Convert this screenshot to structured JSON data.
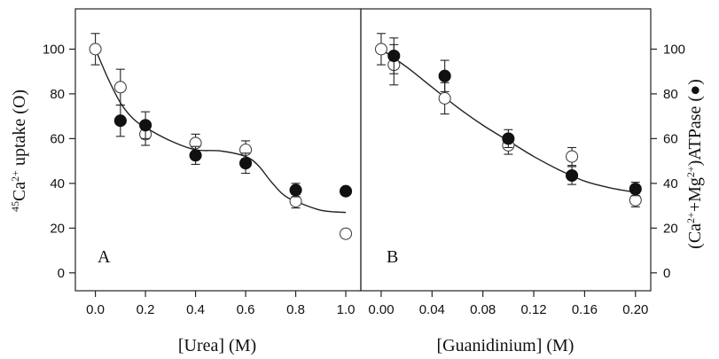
{
  "chart_data": [
    {
      "type": "scatter",
      "panel_label": "A",
      "xlabel": "[Urea] (M)",
      "ylabel_left": {
        "pre": "45",
        "main": "Ca",
        "sup": "2+",
        "post": " uptake (O)"
      },
      "ylim": [
        -8,
        118
      ],
      "xlim": [
        -0.08,
        1.06
      ],
      "xticks": [
        "0.0",
        "0.2",
        "0.4",
        "0.6",
        "0.8",
        "1.0"
      ],
      "xtick_values": [
        0,
        0.2,
        0.4,
        0.6,
        0.8,
        1.0
      ],
      "yticks": [
        "0",
        "20",
        "40",
        "60",
        "80",
        "100"
      ],
      "ytick_values": [
        0,
        20,
        40,
        60,
        80,
        100
      ],
      "series": [
        {
          "marker": "open-circle",
          "x": [
            0,
            0.1,
            0.2,
            0.4,
            0.6,
            0.8,
            1.0
          ],
          "y": [
            100,
            83,
            62,
            58,
            55,
            32,
            17.5
          ],
          "err": [
            7,
            8,
            5,
            4,
            4,
            3,
            0
          ]
        },
        {
          "marker": "filled-circle",
          "x": [
            0.1,
            0.2,
            0.4,
            0.6,
            0.8,
            1.0
          ],
          "y": [
            68,
            66,
            52.5,
            49,
            37,
            36.5
          ],
          "err": [
            7,
            6,
            4,
            4.5,
            3,
            0
          ]
        }
      ],
      "fit_curve": {
        "x": [
          0,
          0.05,
          0.1,
          0.15,
          0.2,
          0.3,
          0.4,
          0.5,
          0.6,
          0.65,
          0.7,
          0.75,
          0.8,
          0.9,
          1.0
        ],
        "y": [
          100,
          87,
          76,
          69,
          65,
          59,
          55,
          54.5,
          52,
          48,
          41,
          35,
          32,
          28,
          27
        ]
      }
    },
    {
      "type": "scatter",
      "panel_label": "B",
      "xlabel": "[Guanidinium] (M)",
      "ylabel_right": {
        "pre": "(Ca",
        "sup1": "2+",
        "mid": "+Mg",
        "sup2": "2+",
        "post": ")ATPase (●)"
      },
      "ylim": [
        -8,
        118
      ],
      "xlim": [
        -0.016,
        0.212
      ],
      "xticks": [
        "0.00",
        "0.04",
        "0.08",
        "0.12",
        "0.16",
        "0.20"
      ],
      "xtick_values": [
        0,
        0.04,
        0.08,
        0.12,
        0.16,
        0.2
      ],
      "yticks": [
        "0",
        "20",
        "40",
        "60",
        "80",
        "100"
      ],
      "ytick_values": [
        0,
        20,
        40,
        60,
        80,
        100
      ],
      "series": [
        {
          "marker": "open-circle",
          "x": [
            0,
            0.01,
            0.05,
            0.1,
            0.15,
            0.2
          ],
          "y": [
            100,
            93,
            78,
            57,
            52,
            32.5
          ],
          "err": [
            7,
            9,
            7,
            4,
            4,
            3
          ]
        },
        {
          "marker": "filled-circle",
          "x": [
            0.01,
            0.05,
            0.1,
            0.15,
            0.2
          ],
          "y": [
            97,
            88,
            60,
            43.5,
            37.5
          ],
          "err": [
            8,
            7,
            4,
            4,
            3
          ]
        }
      ],
      "fit_curve": {
        "x": [
          0,
          0.02,
          0.04,
          0.06,
          0.08,
          0.1,
          0.12,
          0.14,
          0.16,
          0.18,
          0.2
        ],
        "y": [
          100,
          92,
          83,
          74,
          66,
          59,
          52,
          46,
          41,
          38,
          36
        ]
      }
    }
  ]
}
